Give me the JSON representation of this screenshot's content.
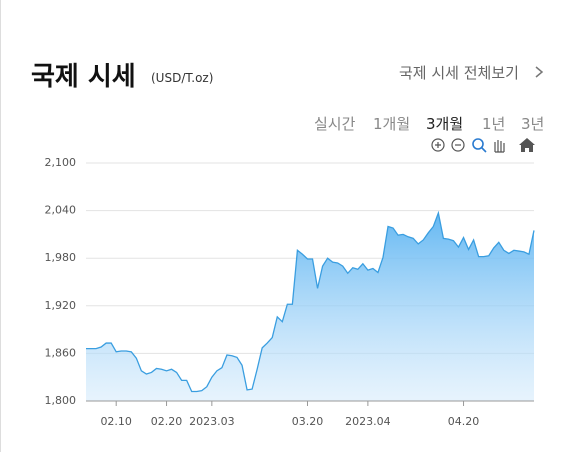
{
  "header": {
    "title": "국제 시세",
    "unit": "(USD/T.oz)",
    "link": "국제 시세 전체보기"
  },
  "tabs": [
    "실시간",
    "1개월",
    "3개월",
    "1년",
    "3년"
  ],
  "chart_data": {
    "type": "area",
    "color": "#3a9ee0",
    "grid": true,
    "categories": [
      null,
      null,
      null,
      null,
      null,
      null,
      "02.10",
      null,
      null,
      null,
      null,
      null,
      null,
      null,
      null,
      null,
      "02.20",
      null,
      null,
      null,
      null,
      null,
      null,
      null,
      null,
      "2023.03",
      null,
      null,
      null,
      null,
      null,
      null,
      null,
      null,
      null,
      null,
      null,
      null,
      null,
      null,
      null,
      null,
      null,
      null,
      "03.20",
      null,
      null,
      null,
      null,
      null,
      null,
      null,
      null,
      null,
      null,
      null,
      "2023.04",
      null,
      null,
      null,
      null,
      null,
      null,
      null,
      null,
      null,
      null,
      null,
      null,
      null,
      null,
      null,
      null,
      null,
      null,
      "04.20",
      null,
      null,
      null,
      null,
      null,
      null,
      null,
      null,
      null,
      null,
      null,
      null,
      null,
      null
    ],
    "values": [
      1866,
      1866,
      1866,
      1868,
      1873,
      1873,
      1862,
      1863,
      1863,
      1862,
      1854,
      1838,
      1834,
      1836,
      1841,
      1840,
      1838,
      1840,
      1836,
      1826,
      1826,
      1812,
      1812,
      1813,
      1818,
      1830,
      1838,
      1842,
      1858,
      1857,
      1855,
      1845,
      1814,
      1815,
      1840,
      1867,
      1873,
      1880,
      1906,
      1900,
      1922,
      1922,
      1990,
      1985,
      1979,
      1979,
      1942,
      1970,
      1980,
      1975,
      1974,
      1970,
      1961,
      1968,
      1966,
      1973,
      1965,
      1967,
      1962,
      1981,
      2020,
      2018,
      2009,
      2010,
      2007,
      2005,
      1998,
      2003,
      2012,
      2020,
      2037,
      2005,
      2004,
      2002,
      1994,
      2006,
      1991,
      2003,
      1982,
      1982,
      1983,
      1993,
      2000,
      1990,
      1986,
      1990,
      1989,
      1988,
      1985,
      2015
    ],
    "ylim": [
      1800,
      2100
    ],
    "yticks": [
      {
        "value": 1800,
        "label": "1,800"
      },
      {
        "value": 1860,
        "label": "1,860"
      },
      {
        "value": 1920,
        "label": "1,920"
      },
      {
        "value": 1980,
        "label": "1,980"
      },
      {
        "value": 2040,
        "label": "2,040"
      },
      {
        "value": 2100,
        "label": "2,100"
      }
    ]
  }
}
